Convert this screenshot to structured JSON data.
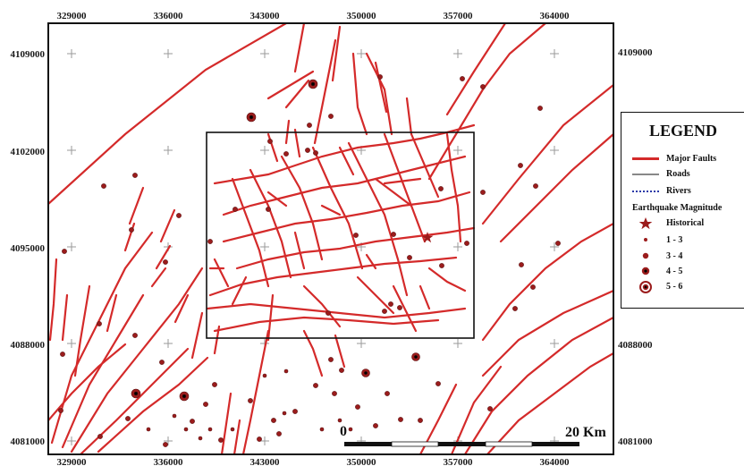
{
  "map": {
    "x_ticks": [
      "329000",
      "336000",
      "343000",
      "350000",
      "357000",
      "364000"
    ],
    "y_ticks": [
      "4109000",
      "4102000",
      "4095000",
      "4088000",
      "4081000"
    ],
    "colors": {
      "fault": "#d42a2a",
      "quake": "#9b1c1c",
      "frame": "#111111",
      "grid_cross": "#9a9a9a"
    }
  },
  "legend": {
    "title": "LEGEND",
    "items": [
      {
        "label": "Major Faults",
        "icon": "red-line"
      },
      {
        "label": "Roads",
        "icon": "gray-line"
      },
      {
        "label": "Rivers",
        "icon": "blue-dashed-line"
      }
    ],
    "eq_header": "Earthquake Magnitude",
    "magnitudes": [
      {
        "label": "Historical",
        "icon": "star"
      },
      {
        "label": "1 - 3",
        "icon": "dot-small"
      },
      {
        "label": "3 - 4",
        "icon": "dot-medium"
      },
      {
        "label": "4 - 5",
        "icon": "dot-large"
      },
      {
        "label": "5 - 6",
        "icon": "dot-xlarge"
      }
    ]
  },
  "scale_bar": {
    "start_label": "0",
    "end_label": "20 Km"
  }
}
